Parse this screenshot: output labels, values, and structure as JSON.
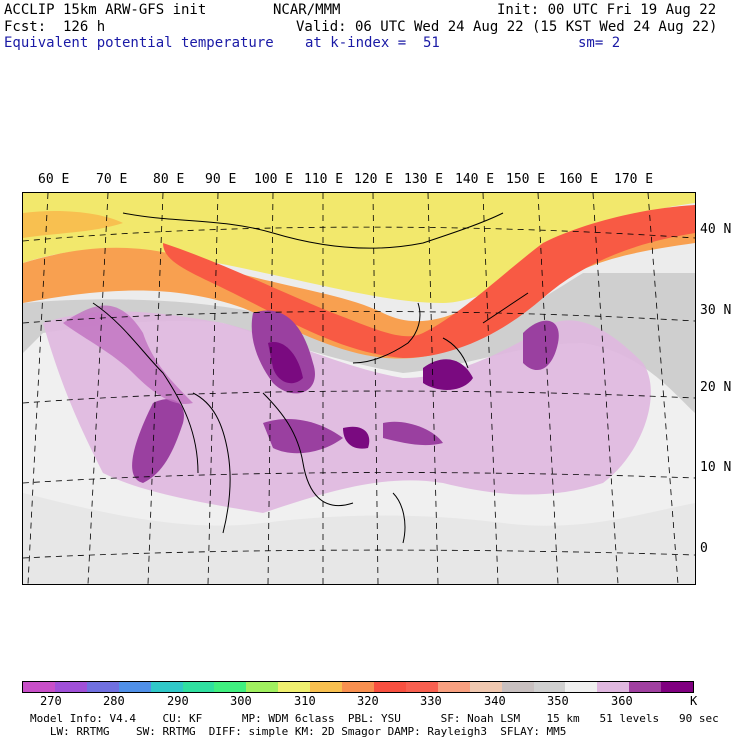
{
  "header": {
    "line1_left": "ACCLIP 15km ARW-GFS init",
    "line1_center": "NCAR/MMM",
    "line1_right": "Init: 00 UTC Fri 19 Aug 22",
    "line2_left": "Fcst:  126 h",
    "line2_right": "Valid: 06 UTC Wed 24 Aug 22 (15 KST Wed 24 Aug 22)",
    "line3_left": "Equivalent potential temperature",
    "line3_center": "at k-index =  51",
    "line3_right": "sm= 2"
  },
  "map": {
    "lon_labels": [
      "60 E",
      "70 E",
      "80 E",
      "90 E",
      "100 E",
      "110 E",
      "120 E",
      "130 E",
      "140 E",
      "150 E",
      "160 E",
      "170 E"
    ],
    "lat_labels": [
      "40 N",
      "30 N",
      "20 N",
      "10 N",
      "0"
    ]
  },
  "colorbar": {
    "colors": [
      "#c84fc8",
      "#a050d8",
      "#7070e0",
      "#5090e8",
      "#30c8c8",
      "#30e0a0",
      "#40f080",
      "#a0f060",
      "#f0f070",
      "#f8c050",
      "#f89050",
      "#f85040",
      "#f86050",
      "#f8a080",
      "#f0c8b0",
      "#c8c0c0",
      "#d0d0d0",
      "#f0f0f0",
      "#e0b8e0",
      "#a040a0",
      "#800080"
    ],
    "ticks": [
      "270",
      "280",
      "290",
      "300",
      "310",
      "320",
      "330",
      "340",
      "350",
      "360"
    ],
    "unit": "K"
  },
  "footer": {
    "line1": "Model Info: V4.4    CU: KF      MP: WDM 6class  PBL: YSU      SF: Noah LSM    15 km   51 levels   90 sec",
    "line2": "   LW: RRTMG    SW: RRTMG  DIFF: simple KM: 2D Smagor DAMP: Rayleigh3  SFLAY: MM5"
  }
}
